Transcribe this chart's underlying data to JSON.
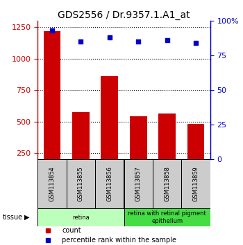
{
  "title": "GDS2556 / Dr.9357.1.A1_at",
  "samples": [
    "GSM113854",
    "GSM113855",
    "GSM113856",
    "GSM113857",
    "GSM113858",
    "GSM113859"
  ],
  "counts": [
    1220,
    575,
    860,
    540,
    565,
    480
  ],
  "percentile_ranks": [
    93,
    85,
    88,
    85,
    86,
    84
  ],
  "tissue_groups": [
    {
      "label": "retina",
      "samples": [
        0,
        1,
        2
      ],
      "color": "#bbffbb"
    },
    {
      "label": "retina with retinal pigment\nepithelium",
      "samples": [
        3,
        4,
        5
      ],
      "color": "#44dd44"
    }
  ],
  "ylim_left": [
    200,
    1300
  ],
  "yticks_left": [
    250,
    500,
    750,
    1000,
    1250
  ],
  "ylim_right": [
    0,
    100
  ],
  "yticks_right": [
    0,
    25,
    50,
    75,
    100
  ],
  "bar_color": "#cc0000",
  "dot_color": "#0000cc",
  "bar_width": 0.6,
  "grid_color": "#000000",
  "bg_color": "#ffffff",
  "left_axis_color": "#cc0000",
  "right_axis_color": "#0000cc",
  "tissue_label": "tissue",
  "legend_count_label": "count",
  "legend_pct_label": "percentile rank within the sample",
  "title_fontsize": 10,
  "tick_fontsize": 8,
  "sample_box_color": "#cccccc",
  "sample_label_fontsize": 6
}
